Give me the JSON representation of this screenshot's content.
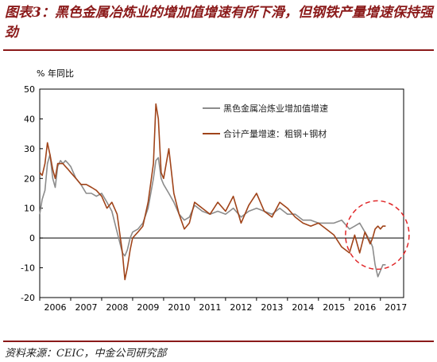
{
  "title": "图表3：黑色金属冶炼业的增加值增速有所下滑，但钢铁产量增速保持强劲",
  "source": "资料来源：CEIC，中金公司研究部",
  "colors": {
    "title": "#8B1A1A",
    "value_added": "#8c8c8c",
    "output": "#a0441a",
    "highlight": "#e0282a"
  },
  "chart_data": {
    "type": "line",
    "ylabel": "% 年同比",
    "ylim": [
      -20,
      50
    ],
    "yticks": [
      -20,
      -10,
      0,
      10,
      20,
      30,
      40,
      50
    ],
    "xlim": [
      2006,
      2017.75
    ],
    "xticks": [
      "2006",
      "2007",
      "2008",
      "2009",
      "2010",
      "2011",
      "2012",
      "2013",
      "2014",
      "2015",
      "2016",
      "2017"
    ],
    "legend_position": "top-right",
    "annotation": "dashed-ellipse highlighting 2016-2017",
    "series": [
      {
        "name": "黑色金属冶炼业增加值增速",
        "x": [
          2006.0,
          2006.08,
          2006.17,
          2006.25,
          2006.33,
          2006.42,
          2006.5,
          2006.58,
          2006.67,
          2006.75,
          2006.83,
          2006.92,
          2007.0,
          2007.17,
          2007.33,
          2007.5,
          2007.67,
          2007.83,
          2008.0,
          2008.17,
          2008.33,
          2008.5,
          2008.67,
          2008.75,
          2008.83,
          2008.92,
          2009.0,
          2009.17,
          2009.33,
          2009.5,
          2009.67,
          2009.75,
          2009.83,
          2009.92,
          2010.0,
          2010.17,
          2010.33,
          2010.5,
          2010.67,
          2010.83,
          2011.0,
          2011.25,
          2011.5,
          2011.75,
          2012.0,
          2012.25,
          2012.5,
          2012.75,
          2013.0,
          2013.25,
          2013.5,
          2013.75,
          2014.0,
          2014.25,
          2014.5,
          2014.75,
          2015.0,
          2015.25,
          2015.5,
          2015.75,
          2016.0,
          2016.17,
          2016.33,
          2016.5,
          2016.67,
          2016.75,
          2016.83,
          2016.92,
          2017.0,
          2017.08,
          2017.17
        ],
        "values": [
          8,
          13,
          16,
          25,
          28,
          20,
          17,
          24,
          26,
          25,
          26,
          25,
          24,
          20,
          18,
          15,
          15,
          14,
          15,
          12,
          9,
          2,
          -5,
          -6,
          -4,
          0,
          2,
          3,
          5,
          10,
          20,
          26,
          27,
          20,
          18,
          15,
          12,
          8,
          6,
          7,
          11,
          9,
          8,
          9,
          8,
          10,
          7,
          9,
          10,
          9,
          8,
          10,
          8,
          8,
          6,
          6,
          5,
          5,
          5,
          6,
          3,
          4,
          5,
          2,
          -1,
          -3,
          -9,
          -13,
          -11,
          -9,
          -9
        ]
      },
      {
        "name": "合计产量增速：粗钢+钢材",
        "x": [
          2006.0,
          2006.08,
          2006.17,
          2006.25,
          2006.33,
          2006.42,
          2006.5,
          2006.58,
          2006.67,
          2006.75,
          2006.83,
          2006.92,
          2007.0,
          2007.17,
          2007.33,
          2007.5,
          2007.67,
          2007.83,
          2008.0,
          2008.17,
          2008.33,
          2008.5,
          2008.67,
          2008.75,
          2008.83,
          2008.92,
          2009.0,
          2009.17,
          2009.33,
          2009.5,
          2009.67,
          2009.75,
          2009.83,
          2009.92,
          2010.0,
          2010.17,
          2010.33,
          2010.5,
          2010.67,
          2010.83,
          2011.0,
          2011.25,
          2011.5,
          2011.75,
          2012.0,
          2012.25,
          2012.5,
          2012.75,
          2013.0,
          2013.25,
          2013.5,
          2013.75,
          2014.0,
          2014.25,
          2014.5,
          2014.75,
          2015.0,
          2015.25,
          2015.5,
          2015.75,
          2016.0,
          2016.17,
          2016.33,
          2016.5,
          2016.67,
          2016.75,
          2016.83,
          2016.92,
          2017.0,
          2017.08,
          2017.17
        ],
        "values": [
          22,
          21,
          25,
          32,
          28,
          23,
          20,
          25,
          25,
          25,
          24,
          23,
          22,
          20,
          18,
          18,
          17,
          16,
          14,
          10,
          12,
          8,
          -5,
          -14,
          -10,
          -4,
          0,
          2,
          4,
          12,
          25,
          45,
          40,
          22,
          20,
          30,
          15,
          8,
          3,
          5,
          12,
          10,
          8,
          12,
          9,
          14,
          5,
          11,
          15,
          9,
          7,
          12,
          10,
          7,
          5,
          4,
          5,
          3,
          1,
          -3,
          -5,
          1,
          -5,
          2,
          -2,
          0,
          3,
          4,
          3,
          4,
          4
        ]
      }
    ]
  }
}
